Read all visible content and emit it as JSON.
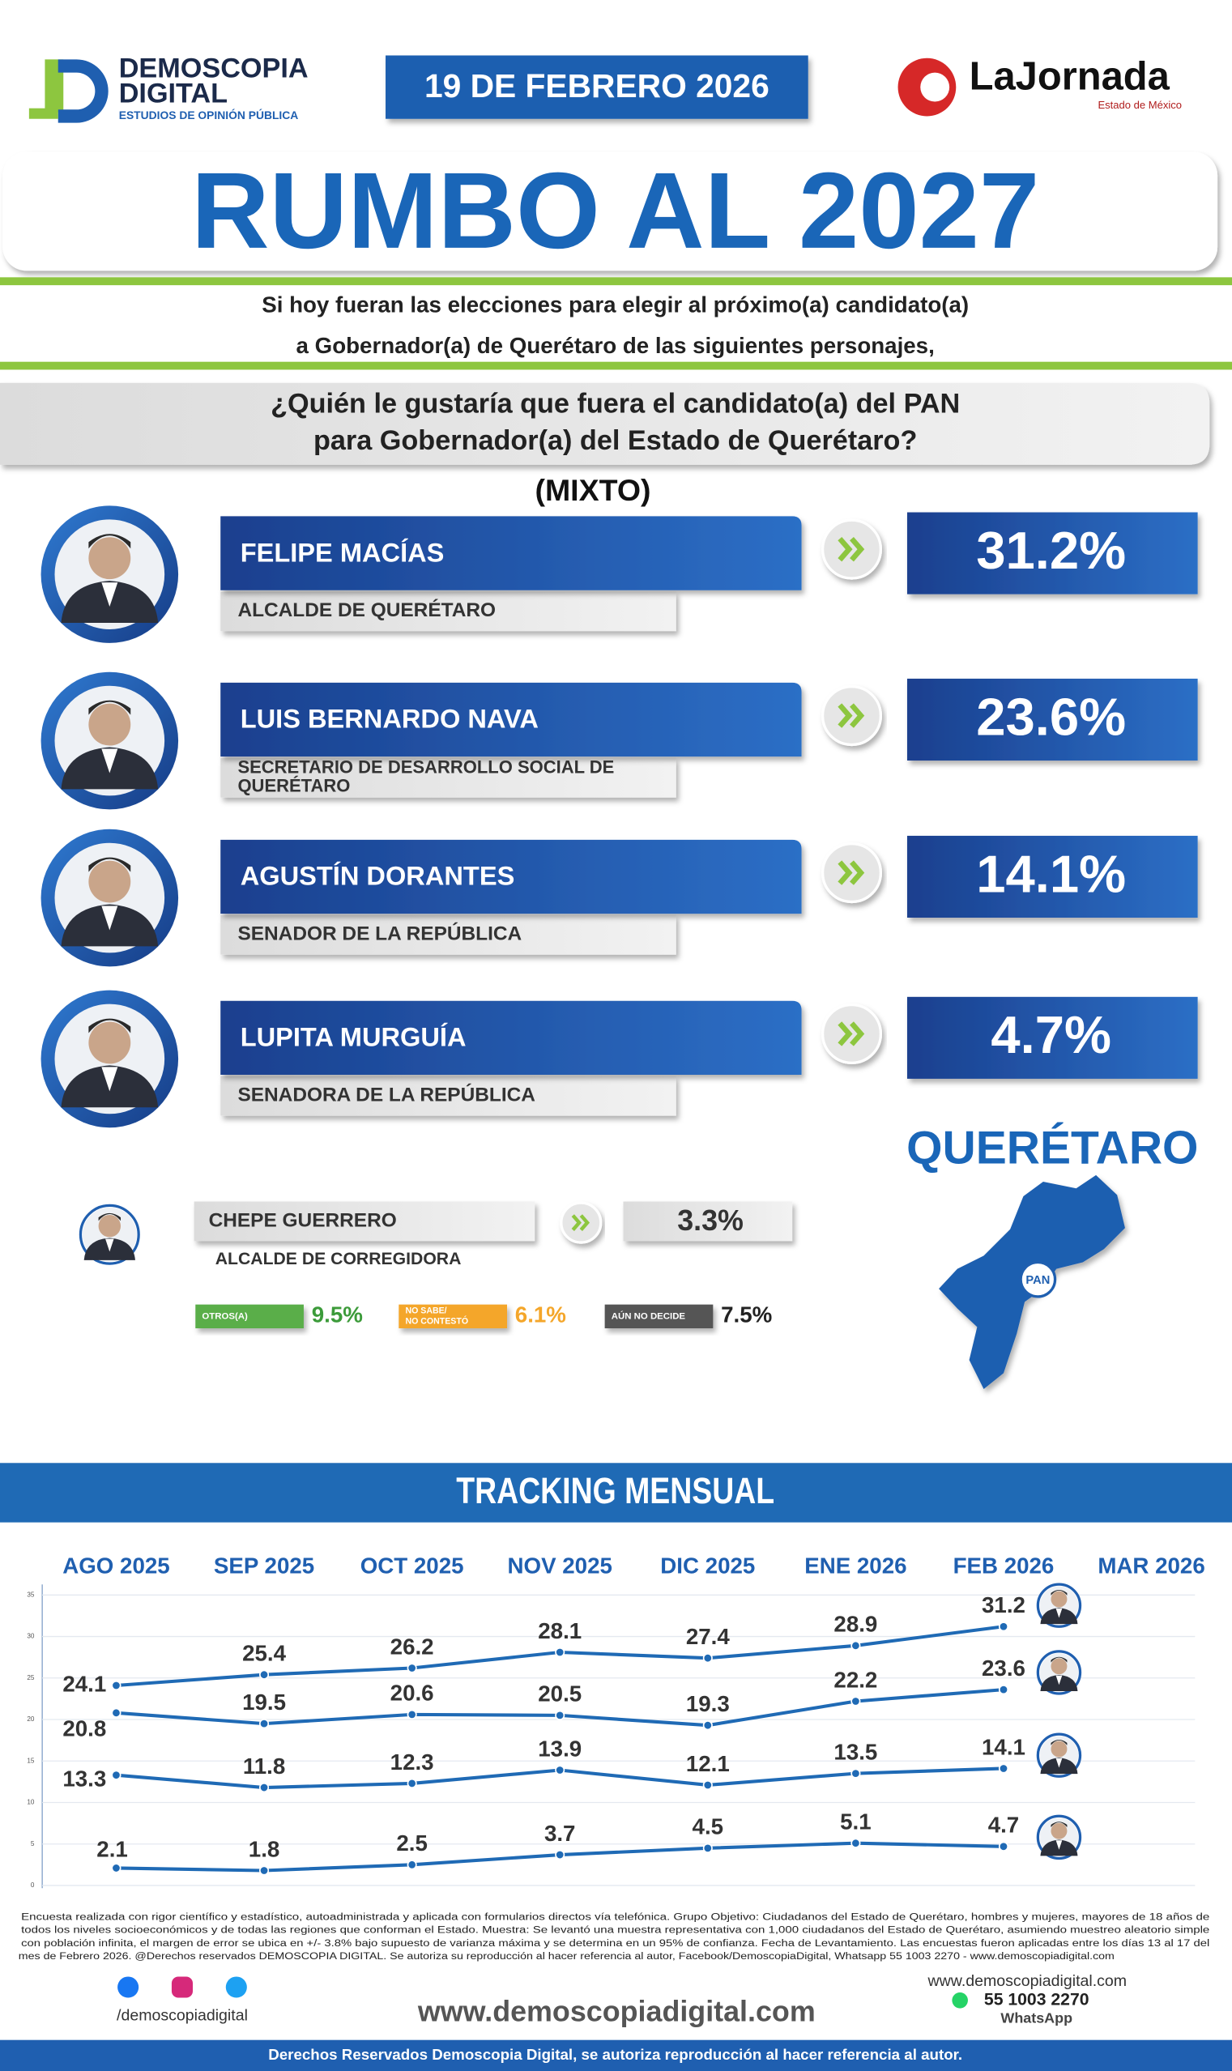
{
  "header": {
    "brand": "DEMOSCOPIA",
    "brand_line2": "DIGITAL",
    "brand_tagline": "ESTUDIOS DE OPINIÓN PÚBLICA",
    "date": "19 DE FEBRERO 2026",
    "partner": "LaJornada",
    "partner_tagline": "Estado de México"
  },
  "title": "RUMBO AL 2027",
  "intro": [
    "Si hoy fueran las elecciones para elegir al próximo(a) candidato(a)",
    "a Gobernador(a) de Querétaro de las siguientes personajes,"
  ],
  "question": [
    "¿Quién le gustaría que fuera el candidato(a) del PAN",
    "para Gobernador(a) del Estado de Querétaro?"
  ],
  "method": "(MIXTO)",
  "candidates": [
    {
      "name": "FELIPE MACÍAS",
      "role": [
        "ALCALDE DE QUERÉTARO"
      ],
      "result": "31.2%"
    },
    {
      "name": "LUIS BERNARDO NAVA",
      "role": [
        "SECRETARIO DE DESARROLLO SOCIAL DE",
        "QUERÉTARO"
      ],
      "result": "23.6%"
    },
    {
      "name": "AGUSTÍN DORANTES",
      "role": [
        "SENADOR DE LA REPÚBLICA"
      ],
      "result": "14.1%"
    },
    {
      "name": "LUPITA MURGUÍA",
      "role": [
        "SENADORA DE LA REPÚBLICA"
      ],
      "result": "4.7%"
    }
  ],
  "minor_candidate": {
    "name": "CHEPE GUERRERO",
    "role": "ALCALDE DE CORREGIDORA",
    "result": "3.3%"
  },
  "other_responses": [
    {
      "label": [
        "OTROS(A)"
      ],
      "result": "9.5%"
    },
    {
      "label": [
        "NO SABE/",
        "NO CONTESTÓ"
      ],
      "result": "6.1%"
    },
    {
      "label": [
        "AÚN NO DECIDE"
      ],
      "result": "7.5%"
    }
  ],
  "map": {
    "title": "QUERÉTARO",
    "badge": "PAN"
  },
  "chart_data": {
    "type": "line",
    "title": "TRACKING MENSUAL",
    "categories": [
      "AGO 2025",
      "SEP 2025",
      "OCT 2025",
      "NOV 2025",
      "DIC 2025",
      "ENE 2026",
      "FEB 2026",
      "MAR 2026"
    ],
    "series": [
      {
        "color": "#1f6ab5",
        "values": [
          24.1,
          25.4,
          26.2,
          28.1,
          27.4,
          28.9,
          31.2,
          null
        ]
      },
      {
        "color": "#1f6ab5",
        "values": [
          20.8,
          19.5,
          20.6,
          20.5,
          19.3,
          22.2,
          23.6,
          null
        ]
      },
      {
        "color": "#1f6ab5",
        "values": [
          13.3,
          11.8,
          12.3,
          13.9,
          12.1,
          13.5,
          14.1,
          null
        ]
      },
      {
        "color": "#1f6ab5",
        "values": [
          2.1,
          1.8,
          2.5,
          3.7,
          4.5,
          5.1,
          4.7,
          null
        ]
      }
    ],
    "ylim": [
      0,
      35
    ],
    "yticks": [
      0,
      5,
      10,
      15,
      20,
      25,
      30,
      35
    ],
    "grid": true
  },
  "footer": {
    "disclaimer": [
      "Encuesta realizada con rigor científico y estadístico, autoadministrada y aplicada con formularios directos vía telefónica. Grupo Objetivo: Ciudadanos del Estado de Querétaro, hombres y mujeres, mayores de 18 años de",
      "todos los niveles socioeconómicos y de todas las regiones que conforman el Estado. Muestra: Se levantó una muestra representativa con 1,000 ciudadanos del Estado de Querétaro, asumiendo muestreo aleatorio simple",
      "con población infinita, el margen de error se ubica en +/- 3.8% bajo supuesto de varianza máxima y se determina en un 95% de confianza. Fecha de Levantamiento. Las encuestas fueron aplicadas entre los días 13 al 17 del",
      "mes de Febrero 2026. @Derechos reservados DEMOSCOPIA DIGITAL. Se autoriza su reproducción al hacer referencia al autor, Facebook/DemoscopiaDigital, Whatsapp 55 1003 2270 - www.demoscopiadigital.com"
    ],
    "social": "/demoscopiadigital",
    "website": "www.demoscopiadigital.com",
    "contact_web": "www.demoscopiadigital.com",
    "phone": "55 1003 2270",
    "phone_label": "WhatsApp",
    "rights": "Derechos Reservados Demoscopia Digital, se autoriza reproducción al hacer referencia al autor."
  }
}
